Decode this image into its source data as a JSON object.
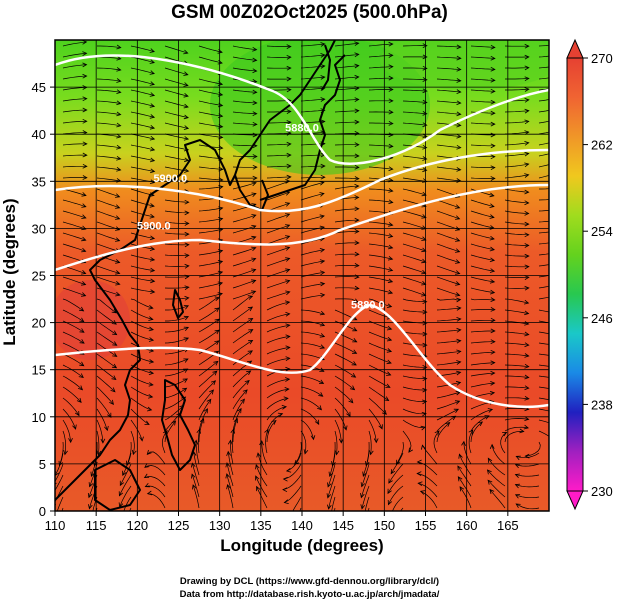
{
  "title": "GSM 00Z02Oct2025 (500.0hPa)",
  "xlabel": "Longitude (degrees)",
  "ylabel": "Latitude  (degrees)",
  "credits": [
    "Drawing by DCL (https://www.gfd-dennou.org/library/dcl/)",
    "Data from http://database.rish.kyoto-u.ac.jp/arch/jmadata/"
  ],
  "map": {
    "lon_range": [
      110,
      170
    ],
    "lat_range": [
      0,
      50
    ],
    "x_ticks": [
      110,
      115,
      120,
      125,
      130,
      135,
      140,
      145,
      150,
      155,
      160,
      165
    ],
    "y_ticks": [
      0,
      5,
      10,
      15,
      20,
      25,
      30,
      35,
      40,
      45
    ],
    "grid": true
  },
  "colorbar": {
    "min": 230,
    "max": 270,
    "tick_labels": [
      "270",
      "262",
      "254",
      "246",
      "238",
      "230"
    ],
    "colors": [
      "#ff1bc8",
      "#a020c0",
      "#2020c0",
      "#1a8ae6",
      "#1ac8c8",
      "#28c850",
      "#64d21e",
      "#a0dc1e",
      "#f0c81e",
      "#f09628",
      "#f06432",
      "#e64132"
    ]
  },
  "contours": [
    {
      "label": "5880.0",
      "lon": 140,
      "lat": 40.3
    },
    {
      "label": "5900.0",
      "lon": 124,
      "lat": 34.9
    },
    {
      "label": "5900.0",
      "lon": 122,
      "lat": 29.9
    },
    {
      "label": "5880.0",
      "lon": 148,
      "lat": 21.5
    }
  ]
}
